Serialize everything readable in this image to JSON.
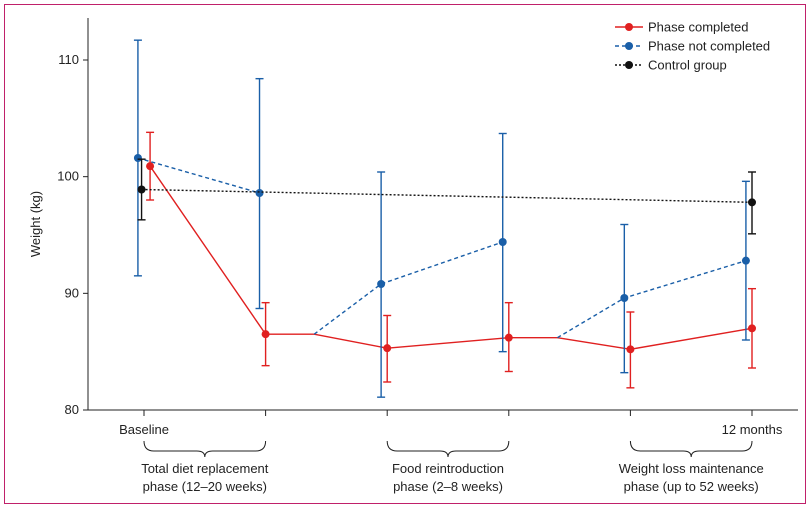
{
  "chart_data": {
    "type": "line",
    "ylabel": "Weight (kg)",
    "ylim": [
      80,
      112
    ],
    "yticks": [
      80,
      90,
      100,
      110
    ],
    "x_labels": [
      "Baseline",
      "12 months"
    ],
    "phases": [
      {
        "line1": "Total diet replacement",
        "line2": "phase (12–20 weeks)"
      },
      {
        "line1": "Food reintroduction",
        "line2": "phase (2–8 weeks)"
      },
      {
        "line1": "Weight loss maintenance",
        "line2": "phase (up to 52 weeks)"
      }
    ],
    "legend_position": "top-right",
    "series": [
      {
        "name": "Phase completed",
        "color": "#e02020",
        "style": "solid",
        "segments": [
          [
            0,
            1,
            1.4,
            2
          ],
          [
            2,
            3,
            3.4,
            4
          ]
        ],
        "x": [
          0.05,
          1,
          2,
          3,
          4,
          5
        ],
        "y": [
          100.9,
          86.5,
          85.3,
          86.2,
          85.2,
          87.0
        ],
        "err_low": [
          98.0,
          83.8,
          82.4,
          83.3,
          81.9,
          83.6
        ],
        "err_high": [
          103.8,
          89.2,
          88.1,
          89.2,
          88.4,
          90.4
        ]
      },
      {
        "name": "Phase not completed",
        "color": "#1a5fa8",
        "style": "dashed",
        "x": [
          -0.05,
          0.95,
          1.95,
          2.95,
          3.95,
          4.95
        ],
        "y": [
          101.6,
          98.6,
          90.8,
          94.4,
          89.6,
          92.8
        ],
        "err_low": [
          91.5,
          88.7,
          81.1,
          85.0,
          83.2,
          86.0
        ],
        "err_high": [
          111.7,
          108.4,
          100.4,
          103.7,
          95.9,
          99.6
        ]
      },
      {
        "name": "Control group",
        "color": "#111111",
        "style": "dotted",
        "x": [
          -0.02,
          5.0
        ],
        "y": [
          98.9,
          97.8
        ],
        "err_low": [
          96.3,
          95.1
        ],
        "err_high": [
          101.5,
          100.4
        ]
      }
    ]
  }
}
